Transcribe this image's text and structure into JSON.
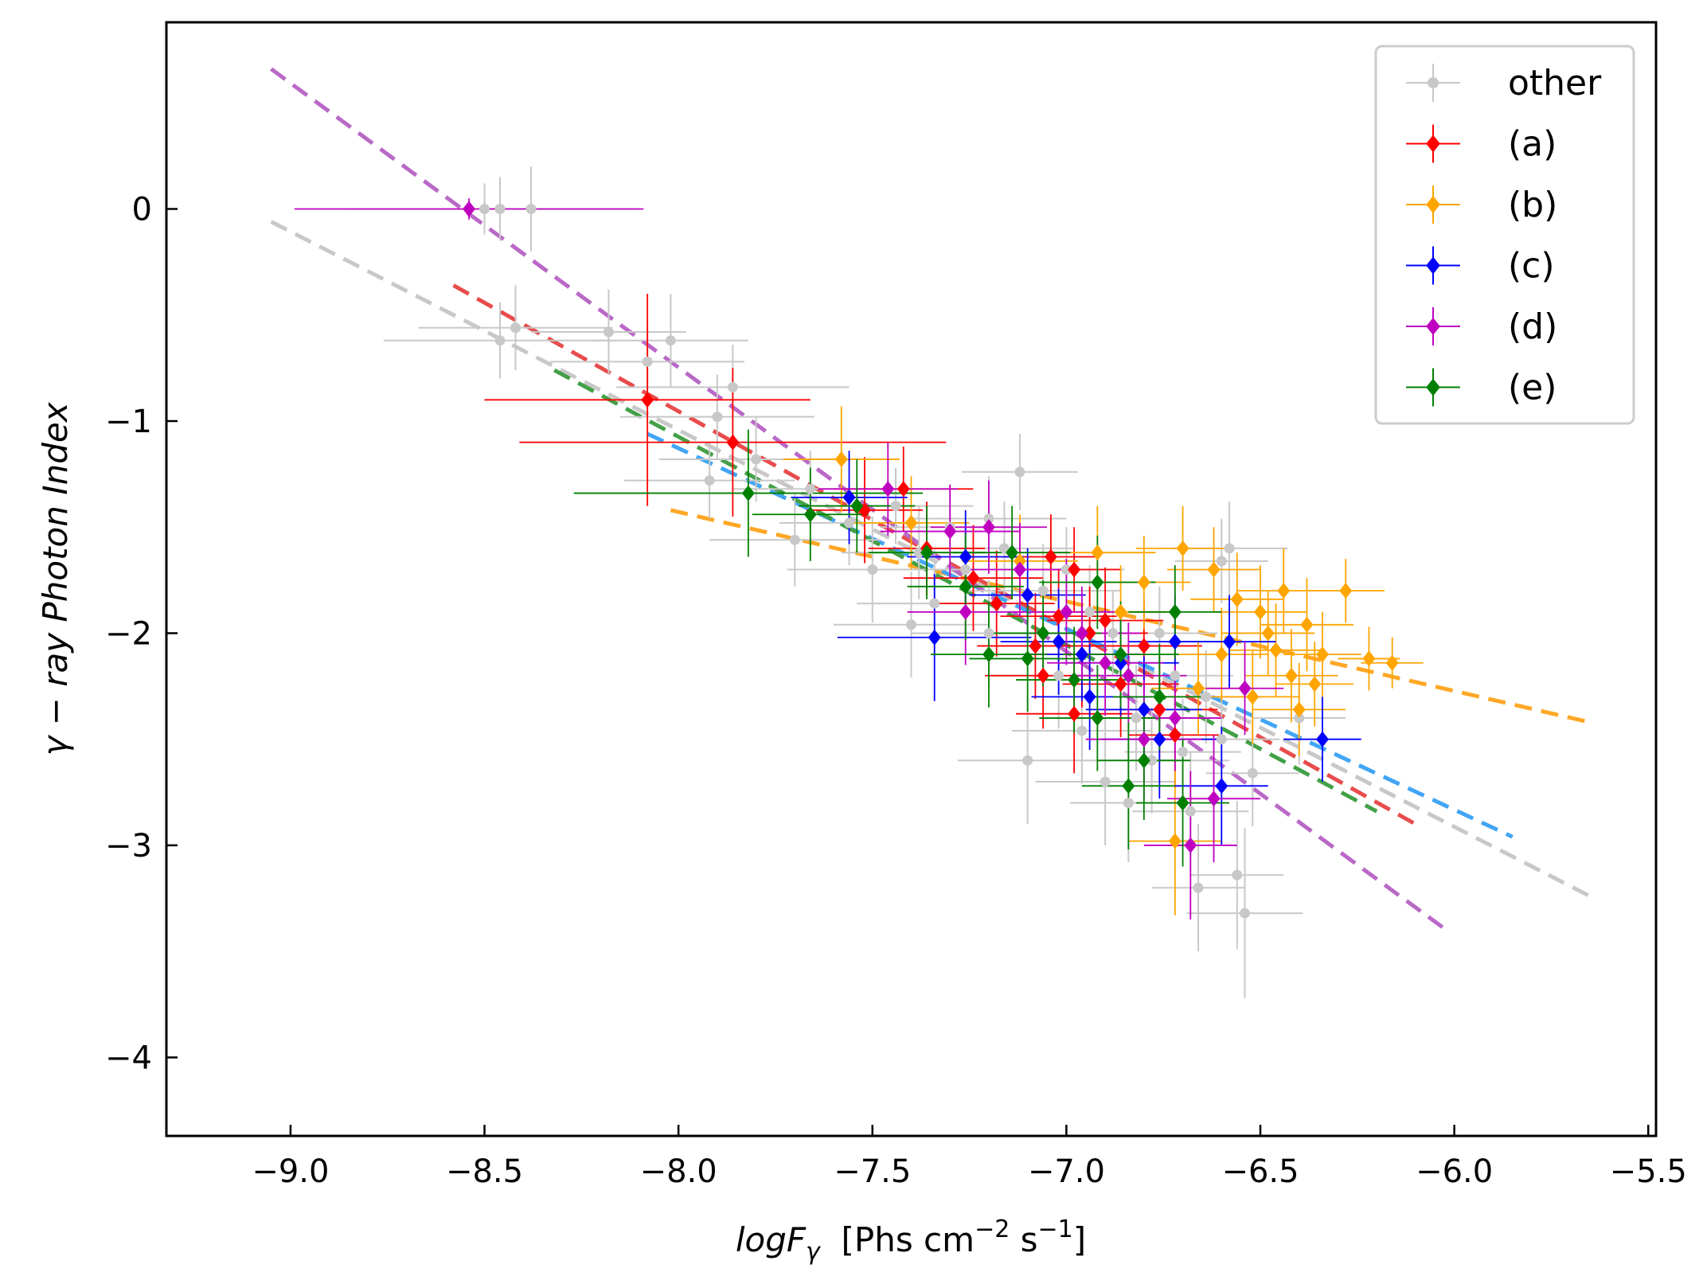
{
  "chart_data": {
    "type": "scatter",
    "title": "",
    "xlabel": {
      "italic": "logF",
      "sub": "γ",
      "unit_open": "  [Phs cm",
      "exp1": "−2",
      "unit_mid": " s",
      "exp2": "−1",
      "unit_close": "]"
    },
    "ylabel": "γ − ray  Photon  Index",
    "xlim": [
      -9.32,
      -5.48
    ],
    "ylim": [
      -4.37,
      0.88
    ],
    "xticks": [
      -9.0,
      -8.5,
      -8.0,
      -7.5,
      -7.0,
      -6.5,
      -6.0,
      -5.5
    ],
    "xtick_labels": [
      "−9.0",
      "−8.5",
      "−8.0",
      "−7.5",
      "−7.0",
      "−6.5",
      "−6.0",
      "−5.5"
    ],
    "yticks": [
      0,
      -1,
      -2,
      -3,
      -4
    ],
    "ytick_labels": [
      "0",
      "−1",
      "−2",
      "−3",
      "−4"
    ],
    "grid": false,
    "legend_position": "top-right",
    "series": [
      {
        "name": "other",
        "color": "#c8c8c8",
        "marker": "circle",
        "points": [
          [
            -8.5,
            0.0,
            0.35,
            0.12
          ],
          [
            -8.46,
            0.0,
            0.35,
            0.15
          ],
          [
            -8.38,
            0.0,
            0.22,
            0.2
          ],
          [
            -8.46,
            -0.62,
            0.3,
            0.18
          ],
          [
            -8.42,
            -0.56,
            0.25,
            0.2
          ],
          [
            -8.18,
            -0.58,
            0.2,
            0.2
          ],
          [
            -8.02,
            -0.62,
            0.2,
            0.22
          ],
          [
            -8.08,
            -0.72,
            0.25,
            0.18
          ],
          [
            -7.9,
            -0.98,
            0.25,
            0.2
          ],
          [
            -7.86,
            -0.84,
            0.3,
            0.2
          ],
          [
            -7.92,
            -1.28,
            0.22,
            0.18
          ],
          [
            -7.8,
            -1.18,
            0.25,
            0.2
          ],
          [
            -7.66,
            -1.32,
            0.2,
            0.18
          ],
          [
            -7.56,
            -1.48,
            0.18,
            0.2
          ],
          [
            -7.44,
            -1.4,
            0.2,
            0.18
          ],
          [
            -7.38,
            -1.62,
            0.2,
            0.22
          ],
          [
            -7.3,
            -1.5,
            0.18,
            0.2
          ],
          [
            -7.2,
            -1.46,
            0.2,
            0.2
          ],
          [
            -7.12,
            -1.24,
            0.15,
            0.18
          ],
          [
            -7.06,
            -1.8,
            0.2,
            0.22
          ],
          [
            -7.0,
            -1.7,
            0.15,
            0.2
          ],
          [
            -6.94,
            -1.9,
            0.18,
            0.22
          ],
          [
            -6.88,
            -2.0,
            0.15,
            0.2
          ],
          [
            -6.82,
            -2.4,
            0.18,
            0.25
          ],
          [
            -6.78,
            -2.6,
            0.2,
            0.25
          ],
          [
            -6.72,
            -2.2,
            0.15,
            0.22
          ],
          [
            -6.68,
            -2.84,
            0.15,
            0.28
          ],
          [
            -6.66,
            -3.2,
            0.12,
            0.3
          ],
          [
            -6.56,
            -3.14,
            0.12,
            0.35
          ],
          [
            -6.54,
            -3.32,
            0.15,
            0.4
          ],
          [
            -6.6,
            -2.5,
            0.15,
            0.22
          ],
          [
            -6.52,
            -2.66,
            0.12,
            0.25
          ],
          [
            -6.4,
            -2.4,
            0.12,
            0.22
          ],
          [
            -6.6,
            -1.66,
            0.12,
            0.2
          ],
          [
            -6.58,
            -1.6,
            0.15,
            0.22
          ],
          [
            -7.1,
            -2.6,
            0.18,
            0.3
          ],
          [
            -7.2,
            -2.0,
            0.2,
            0.25
          ],
          [
            -7.34,
            -1.86,
            0.2,
            0.25
          ],
          [
            -7.5,
            -1.7,
            0.22,
            0.25
          ],
          [
            -7.7,
            -1.56,
            0.22,
            0.22
          ],
          [
            -6.9,
            -2.7,
            0.18,
            0.3
          ],
          [
            -6.84,
            -2.8,
            0.15,
            0.28
          ],
          [
            -7.02,
            -2.2,
            0.18,
            0.25
          ],
          [
            -6.96,
            -2.46,
            0.18,
            0.25
          ],
          [
            -7.26,
            -1.7,
            0.2,
            0.22
          ],
          [
            -7.4,
            -1.96,
            0.2,
            0.25
          ],
          [
            -6.76,
            -2.0,
            0.15,
            0.22
          ],
          [
            -6.7,
            -2.56,
            0.15,
            0.25
          ],
          [
            -6.64,
            -2.3,
            0.15,
            0.22
          ],
          [
            -7.16,
            -1.6,
            0.18,
            0.22
          ]
        ]
      },
      {
        "name": "(a)",
        "color": "#ff0000",
        "marker": "diamond",
        "points": [
          [
            -8.08,
            -0.9,
            0.42,
            0.5
          ],
          [
            -7.86,
            -1.1,
            0.55,
            0.35
          ],
          [
            -7.52,
            -1.42,
            0.15,
            0.25
          ],
          [
            -7.42,
            -1.32,
            0.18,
            0.2
          ],
          [
            -7.36,
            -1.6,
            0.15,
            0.22
          ],
          [
            -7.24,
            -1.74,
            0.18,
            0.25
          ],
          [
            -7.18,
            -1.86,
            0.15,
            0.25
          ],
          [
            -7.08,
            -2.06,
            0.15,
            0.25
          ],
          [
            -7.02,
            -1.92,
            0.15,
            0.22
          ],
          [
            -6.98,
            -1.7,
            0.12,
            0.2
          ],
          [
            -6.96,
            -2.1,
            0.15,
            0.25
          ],
          [
            -6.9,
            -1.94,
            0.15,
            0.25
          ],
          [
            -6.86,
            -2.24,
            0.15,
            0.25
          ],
          [
            -6.8,
            -2.06,
            0.15,
            0.22
          ],
          [
            -6.76,
            -2.36,
            0.15,
            0.25
          ],
          [
            -6.72,
            -2.48,
            0.12,
            0.25
          ],
          [
            -6.98,
            -2.38,
            0.15,
            0.28
          ],
          [
            -7.04,
            -1.64,
            0.12,
            0.2
          ],
          [
            -7.06,
            -2.2,
            0.15,
            0.25
          ],
          [
            -6.94,
            -2.0,
            0.15,
            0.22
          ]
        ]
      },
      {
        "name": "(b)",
        "color": "#ffa500",
        "marker": "diamond",
        "points": [
          [
            -7.58,
            -1.18,
            0.15,
            0.25
          ],
          [
            -7.4,
            -1.48,
            0.15,
            0.22
          ],
          [
            -7.12,
            -1.66,
            0.15,
            0.22
          ],
          [
            -6.92,
            -1.62,
            0.15,
            0.22
          ],
          [
            -6.8,
            -1.76,
            0.12,
            0.22
          ],
          [
            -6.7,
            -1.6,
            0.12,
            0.2
          ],
          [
            -6.62,
            -1.7,
            0.12,
            0.2
          ],
          [
            -6.56,
            -1.84,
            0.12,
            0.22
          ],
          [
            -6.5,
            -1.9,
            0.12,
            0.22
          ],
          [
            -6.46,
            -2.08,
            0.12,
            0.22
          ],
          [
            -6.42,
            -2.2,
            0.12,
            0.22
          ],
          [
            -6.38,
            -1.96,
            0.12,
            0.22
          ],
          [
            -6.34,
            -2.1,
            0.1,
            0.2
          ],
          [
            -6.28,
            -1.8,
            0.1,
            0.15
          ],
          [
            -6.22,
            -2.12,
            0.08,
            0.15
          ],
          [
            -6.16,
            -2.14,
            0.08,
            0.12
          ],
          [
            -6.44,
            -1.8,
            0.12,
            0.2
          ],
          [
            -6.52,
            -2.3,
            0.12,
            0.22
          ],
          [
            -6.6,
            -2.1,
            0.12,
            0.22
          ],
          [
            -6.66,
            -2.26,
            0.12,
            0.22
          ],
          [
            -6.72,
            -2.98,
            0.12,
            0.35
          ],
          [
            -6.86,
            -1.9,
            0.12,
            0.22
          ],
          [
            -6.4,
            -2.36,
            0.12,
            0.22
          ],
          [
            -6.48,
            -2.0,
            0.12,
            0.2
          ],
          [
            -6.36,
            -2.24,
            0.1,
            0.2
          ]
        ]
      },
      {
        "name": "(c)",
        "color": "#0000ff",
        "marker": "diamond",
        "points": [
          [
            -7.56,
            -1.36,
            0.15,
            0.22
          ],
          [
            -7.34,
            -2.02,
            0.25,
            0.3
          ],
          [
            -7.26,
            -1.64,
            0.15,
            0.22
          ],
          [
            -7.1,
            -1.82,
            0.15,
            0.22
          ],
          [
            -7.02,
            -2.04,
            0.15,
            0.25
          ],
          [
            -6.94,
            -2.3,
            0.15,
            0.25
          ],
          [
            -6.86,
            -2.14,
            0.15,
            0.25
          ],
          [
            -6.76,
            -2.5,
            0.15,
            0.28
          ],
          [
            -6.72,
            -2.04,
            0.12,
            0.22
          ],
          [
            -6.6,
            -2.72,
            0.12,
            0.28
          ],
          [
            -6.58,
            -2.04,
            0.12,
            0.22
          ],
          [
            -6.34,
            -2.5,
            0.1,
            0.2
          ],
          [
            -6.96,
            -2.1,
            0.15,
            0.22
          ],
          [
            -6.8,
            -2.36,
            0.15,
            0.25
          ]
        ]
      },
      {
        "name": "(d)",
        "color": "#c000c0",
        "marker": "diamond",
        "points": [
          [
            -8.54,
            0.0,
            0.45,
            0.05
          ],
          [
            -7.46,
            -1.32,
            0.18,
            0.22
          ],
          [
            -7.3,
            -1.52,
            0.18,
            0.22
          ],
          [
            -7.2,
            -1.5,
            0.15,
            0.22
          ],
          [
            -7.12,
            -1.7,
            0.15,
            0.22
          ],
          [
            -7.0,
            -1.9,
            0.15,
            0.25
          ],
          [
            -6.9,
            -2.14,
            0.15,
            0.25
          ],
          [
            -6.84,
            -2.2,
            0.15,
            0.25
          ],
          [
            -6.8,
            -2.5,
            0.15,
            0.28
          ],
          [
            -6.72,
            -2.4,
            0.12,
            0.25
          ],
          [
            -6.68,
            -3.0,
            0.12,
            0.35
          ],
          [
            -6.62,
            -2.78,
            0.12,
            0.3
          ],
          [
            -6.54,
            -2.26,
            0.1,
            0.22
          ],
          [
            -7.26,
            -1.9,
            0.15,
            0.25
          ],
          [
            -6.96,
            -2.0,
            0.15,
            0.22
          ]
        ]
      },
      {
        "name": "(e)",
        "color": "#008000",
        "marker": "diamond",
        "points": [
          [
            -7.82,
            -1.34,
            0.45,
            0.3
          ],
          [
            -7.66,
            -1.44,
            0.15,
            0.22
          ],
          [
            -7.54,
            -1.4,
            0.15,
            0.22
          ],
          [
            -7.36,
            -1.62,
            0.15,
            0.22
          ],
          [
            -7.26,
            -1.78,
            0.15,
            0.25
          ],
          [
            -7.14,
            -1.62,
            0.15,
            0.22
          ],
          [
            -7.06,
            -2.0,
            0.15,
            0.25
          ],
          [
            -6.98,
            -2.22,
            0.15,
            0.25
          ],
          [
            -6.92,
            -1.76,
            0.15,
            0.22
          ],
          [
            -6.86,
            -2.1,
            0.15,
            0.25
          ],
          [
            -6.8,
            -2.6,
            0.12,
            0.28
          ],
          [
            -6.76,
            -2.3,
            0.12,
            0.25
          ],
          [
            -6.72,
            -1.9,
            0.12,
            0.22
          ],
          [
            -6.7,
            -2.8,
            0.12,
            0.3
          ],
          [
            -6.84,
            -2.72,
            0.12,
            0.3
          ],
          [
            -7.1,
            -2.12,
            0.15,
            0.25
          ],
          [
            -6.92,
            -2.4,
            0.15,
            0.25
          ],
          [
            -7.2,
            -2.1,
            0.15,
            0.25
          ]
        ]
      }
    ],
    "fit_lines": [
      {
        "series": "other",
        "color": "#c8c8c8",
        "x": [
          -9.05,
          -5.65
        ],
        "y": [
          -0.06,
          -3.24
        ]
      },
      {
        "series": "(a)",
        "color": "#e84c4c",
        "x": [
          -8.58,
          -6.1
        ],
        "y": [
          -0.36,
          -2.9
        ]
      },
      {
        "series": "(b)",
        "color": "#ffa726",
        "x": [
          -8.02,
          -5.65
        ],
        "y": [
          -1.42,
          -2.42
        ]
      },
      {
        "series": "(c)",
        "color": "#42a5f5",
        "x": [
          -8.08,
          -5.85
        ],
        "y": [
          -1.06,
          -2.96
        ]
      },
      {
        "series": "(d)",
        "color": "#ba68c8",
        "x": [
          -9.05,
          -6.02
        ],
        "y": [
          0.66,
          -3.4
        ]
      },
      {
        "series": "(e)",
        "color": "#43a047",
        "x": [
          -8.32,
          -6.2
        ],
        "y": [
          -0.76,
          -2.84
        ]
      }
    ]
  }
}
